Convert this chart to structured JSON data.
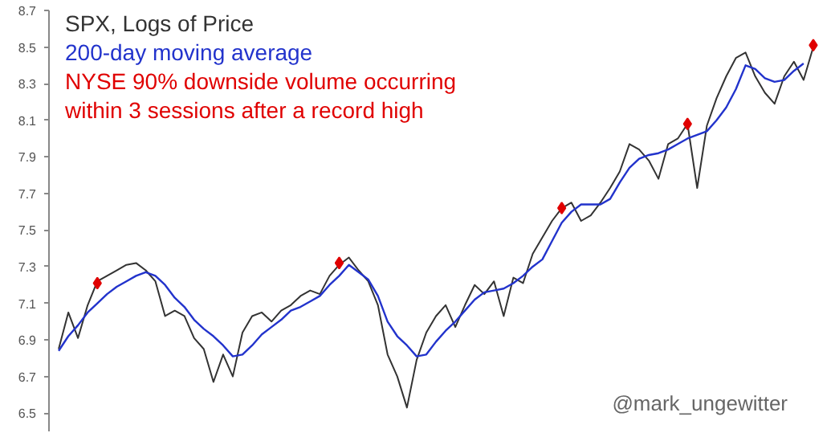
{
  "chart_data": {
    "type": "line",
    "tick_labels": "y",
    "ylim": [
      6.4,
      8.7
    ],
    "yticks": [
      6.5,
      6.7,
      6.9,
      7.1,
      7.3,
      7.5,
      7.7,
      7.9,
      8.1,
      8.3,
      8.5,
      8.7
    ],
    "grid": false,
    "categories": [
      null,
      null,
      null,
      null,
      null,
      null,
      null,
      null,
      null,
      null,
      null,
      null,
      null,
      null,
      null,
      null,
      null,
      null,
      null,
      null,
      null,
      null,
      null,
      null,
      null,
      null,
      null,
      null,
      null,
      null,
      null,
      null,
      null,
      null,
      null,
      null,
      null,
      null,
      null,
      null,
      null,
      null,
      null,
      null,
      null,
      null,
      null,
      null,
      null,
      null,
      null,
      null,
      null,
      null,
      null,
      null,
      null,
      null,
      null,
      null,
      null,
      null,
      null,
      null,
      null,
      null,
      null,
      null,
      null,
      null,
      null,
      null,
      null,
      null,
      null,
      null,
      null,
      null,
      null
    ],
    "series": [
      {
        "name": "SPX, Logs of Price",
        "color": "#333333",
        "values": [
          6.85,
          7.05,
          6.91,
          7.09,
          7.22,
          7.25,
          7.28,
          7.31,
          7.32,
          7.28,
          7.22,
          7.03,
          7.06,
          7.03,
          6.91,
          6.85,
          6.67,
          6.82,
          6.7,
          6.94,
          7.03,
          7.05,
          7.0,
          7.06,
          7.09,
          7.14,
          7.17,
          7.15,
          7.25,
          7.31,
          7.35,
          7.28,
          7.22,
          7.09,
          6.82,
          6.7,
          6.53,
          6.79,
          6.94,
          7.03,
          7.09,
          6.97,
          7.09,
          7.2,
          7.15,
          7.22,
          7.03,
          7.24,
          7.21,
          7.37,
          7.46,
          7.55,
          7.62,
          7.65,
          7.55,
          7.58,
          7.65,
          7.73,
          7.82,
          7.97,
          7.94,
          7.88,
          7.78,
          7.97,
          8.0,
          8.08,
          7.73,
          8.07,
          8.22,
          8.34,
          8.44,
          8.47,
          8.34,
          8.25,
          8.19,
          8.34,
          8.42,
          8.32,
          8.5
        ]
      },
      {
        "name": "200-day moving average",
        "color": "#2233cc",
        "values": [
          6.84,
          6.92,
          6.98,
          7.05,
          7.1,
          7.15,
          7.19,
          7.22,
          7.25,
          7.27,
          7.25,
          7.2,
          7.13,
          7.08,
          7.01,
          6.96,
          6.92,
          6.87,
          6.81,
          6.82,
          6.87,
          6.93,
          6.97,
          7.01,
          7.06,
          7.08,
          7.11,
          7.14,
          7.2,
          7.25,
          7.31,
          7.27,
          7.23,
          7.14,
          7.0,
          6.92,
          6.87,
          6.81,
          6.82,
          6.89,
          6.95,
          7.0,
          7.06,
          7.12,
          7.16,
          7.17,
          7.18,
          7.21,
          7.25,
          7.3,
          7.34,
          7.44,
          7.54,
          7.6,
          7.64,
          7.64,
          7.64,
          7.67,
          7.76,
          7.84,
          7.89,
          7.91,
          7.92,
          7.94,
          7.97,
          8.0,
          8.02,
          8.04,
          8.1,
          8.17,
          8.27,
          8.4,
          8.38,
          8.33,
          8.31,
          8.32,
          8.37,
          8.41,
          null
        ]
      },
      {
        "name": "NYSE 90% downside volume occurring within 3 sessions after a record high",
        "color": "#e00000",
        "type": "scatter",
        "marker": "diamond",
        "values": [
          null,
          null,
          null,
          null,
          7.21,
          null,
          null,
          null,
          null,
          null,
          null,
          null,
          null,
          null,
          null,
          null,
          null,
          null,
          null,
          null,
          null,
          null,
          null,
          null,
          null,
          null,
          null,
          null,
          null,
          7.32,
          null,
          null,
          null,
          null,
          null,
          null,
          null,
          null,
          null,
          null,
          null,
          null,
          null,
          null,
          null,
          null,
          null,
          null,
          null,
          null,
          null,
          null,
          7.62,
          null,
          null,
          null,
          null,
          null,
          null,
          null,
          null,
          null,
          null,
          null,
          null,
          8.08,
          null,
          null,
          null,
          null,
          null,
          null,
          null,
          null,
          null,
          null,
          null,
          null,
          8.51
        ]
      }
    ],
    "annotations": [
      "@mark_ungewitter"
    ]
  }
}
